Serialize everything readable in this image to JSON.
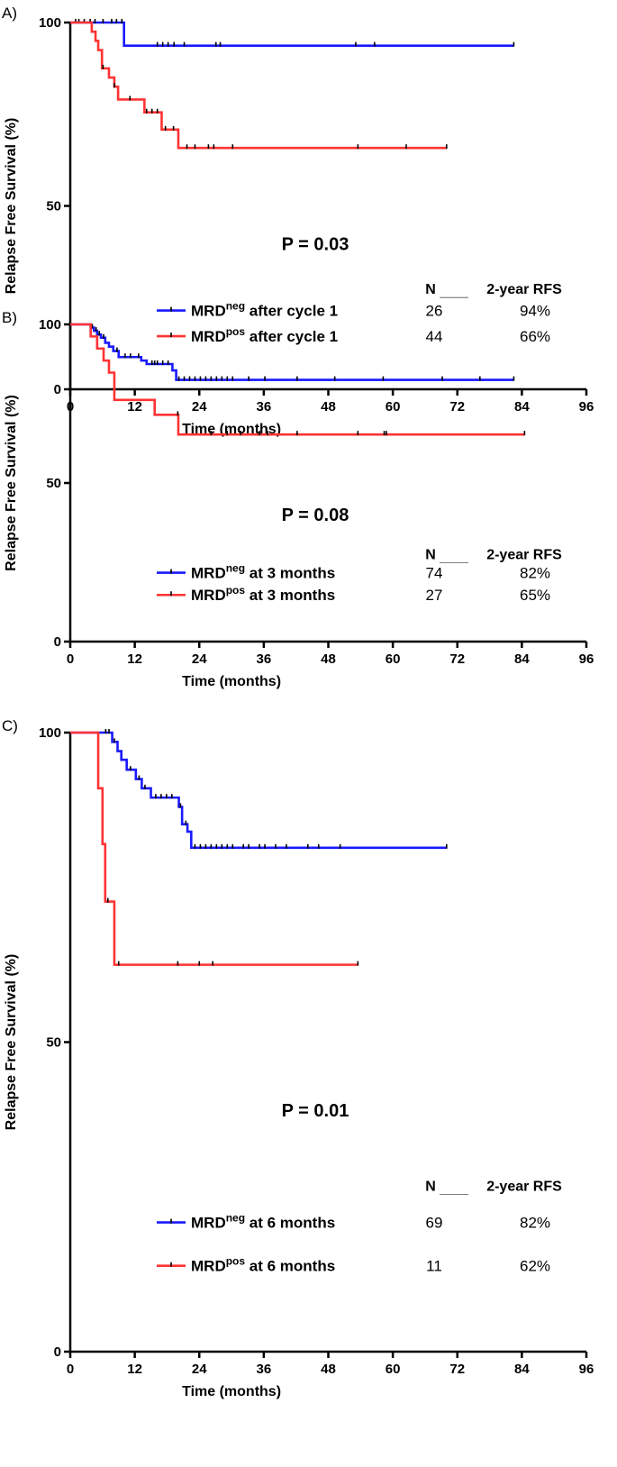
{
  "chart_data": [
    {
      "type": "line",
      "panel_label": "A)",
      "ylabel": "Relapse Free Survival (%)",
      "xlabel": "Time (months)",
      "xlim": [
        0,
        96
      ],
      "ylim": [
        0,
        100
      ],
      "xticks": [
        0,
        12,
        24,
        36,
        48,
        60,
        72,
        84,
        96
      ],
      "yticks": [
        0,
        50,
        100
      ],
      "pvalue": "P = 0.03",
      "table_header": {
        "n": "N",
        "rfs": "2-year RFS"
      },
      "series": [
        {
          "name_base": "MRD",
          "name_sup": "neg",
          "name_rest": "after cycle 1",
          "color": "#1a1aff",
          "n": "26",
          "rfs": "94%",
          "steps": [
            [
              0,
              100
            ],
            [
              10,
              93.7
            ],
            [
              82.5,
              93.7
            ]
          ],
          "censors": [
            1,
            1.6,
            2.6,
            3.7,
            4.6,
            6.1,
            7.7,
            8.6,
            9.6,
            16.2,
            17.2,
            18.2,
            19.3,
            21.2,
            27.1,
            27.9,
            53.1,
            56.6,
            82.5
          ]
        },
        {
          "name_base": "MRD",
          "name_sup": "pos",
          "name_rest": "after cycle 1",
          "color": "#ff3333",
          "n": "44",
          "rfs": "66%",
          "steps": [
            [
              0,
              100
            ],
            [
              4,
              97.5
            ],
            [
              4.7,
              95
            ],
            [
              5.2,
              92.5
            ],
            [
              5.9,
              87.5
            ],
            [
              7.2,
              85
            ],
            [
              8.2,
              82.5
            ],
            [
              8.9,
              79
            ],
            [
              13.8,
              75.5
            ],
            [
              17,
              70.8
            ],
            [
              20.1,
              65.8
            ],
            [
              70,
              65.8
            ]
          ],
          "censors": [
            6.1,
            8.2,
            11.1,
            14.2,
            15.2,
            16.2,
            17.7,
            19.2,
            21.7,
            23.2,
            25.7,
            26.7,
            30.2,
            53.5,
            62.5,
            70
          ]
        }
      ]
    },
    {
      "type": "line",
      "panel_label": "B)",
      "ylabel": "Relapse Free Survival (%)",
      "xlabel": "Time (months)",
      "xlim": [
        0,
        96
      ],
      "ylim": [
        0,
        100
      ],
      "xticks": [
        0,
        12,
        24,
        36,
        48,
        60,
        72,
        84,
        96
      ],
      "yticks": [
        0,
        50,
        100
      ],
      "pvalue": "P = 0.08",
      "table_header": {
        "n": "N",
        "rfs": "2-year RFS"
      },
      "series": [
        {
          "name_base": "MRD",
          "name_sup": "neg",
          "name_rest": "at 3 months",
          "color": "#1a1aff",
          "n": "74",
          "rfs": "82%",
          "steps": [
            [
              0,
              100
            ],
            [
              3.8,
              99
            ],
            [
              4.4,
              98
            ],
            [
              5,
              96.8
            ],
            [
              5.7,
              95.8
            ],
            [
              6.5,
              94.2
            ],
            [
              7.2,
              93
            ],
            [
              8,
              91.6
            ],
            [
              9,
              89.7
            ],
            [
              13.2,
              88.6
            ],
            [
              14.2,
              87.5
            ],
            [
              19,
              85.5
            ],
            [
              19.7,
              82.5
            ],
            [
              82.5,
              82.5
            ]
          ],
          "censors": [
            4.1,
            4.8,
            5.4,
            6.2,
            8.7,
            10.2,
            11.2,
            12.7,
            15.2,
            15.7,
            16.2,
            17.2,
            18.2,
            20.2,
            21.2,
            22.2,
            23.2,
            24.2,
            25.2,
            26.2,
            27.2,
            28.2,
            29.2,
            30.2,
            33.2,
            36.2,
            42.2,
            49.2,
            58.2,
            69.2,
            76.2,
            82.5
          ]
        },
        {
          "name_base": "MRD",
          "name_sup": "pos",
          "name_rest": "at 3 months",
          "color": "#ff3333",
          "n": "27",
          "rfs": "65%",
          "steps": [
            [
              0,
              100
            ],
            [
              3.8,
              96.2
            ],
            [
              5,
              92.4
            ],
            [
              6.2,
              88.6
            ],
            [
              7.2,
              84.8
            ],
            [
              8.2,
              76.2
            ],
            [
              15.7,
              71.5
            ],
            [
              20.1,
              65.3
            ],
            [
              84.5,
              65.3
            ]
          ],
          "censors": [
            20,
            26.2,
            29.2,
            31.7,
            35.2,
            36.7,
            42.2,
            53.5,
            58.4,
            58.8,
            84.5
          ]
        }
      ]
    },
    {
      "type": "line",
      "panel_label": "C)",
      "ylabel": "Relapse Free Survival (%)",
      "xlabel": "Time (months)",
      "xlim": [
        0,
        96
      ],
      "ylim": [
        0,
        100
      ],
      "xticks": [
        0,
        12,
        24,
        36,
        48,
        60,
        72,
        84,
        96
      ],
      "yticks": [
        0,
        50,
        100
      ],
      "pvalue": "P = 0.01",
      "table_header": {
        "n": "N",
        "rfs": "2-year RFS"
      },
      "series": [
        {
          "name_base": "MRD",
          "name_sup": "neg",
          "name_rest": "at 6 months",
          "color": "#1a1aff",
          "n": "69",
          "rfs": "82%",
          "steps": [
            [
              0,
              100
            ],
            [
              7.8,
              98.5
            ],
            [
              8.8,
              97
            ],
            [
              9.5,
              95.6
            ],
            [
              10.5,
              94
            ],
            [
              12.2,
              92.5
            ],
            [
              13.3,
              91
            ],
            [
              15,
              89.5
            ],
            [
              20.2,
              88
            ],
            [
              20.8,
              85.2
            ],
            [
              21.8,
              84
            ],
            [
              22.5,
              81.4
            ],
            [
              70,
              81.4
            ]
          ],
          "censors": [
            6.6,
            7.2,
            8.2,
            11.2,
            12.8,
            13.9,
            15.9,
            16.9,
            17.9,
            18.9,
            20.5,
            21.5,
            23.2,
            24.2,
            25.2,
            26.2,
            27.2,
            28.2,
            29.2,
            30.2,
            32.2,
            33.2,
            35.2,
            36.2,
            38.2,
            40.2,
            44.2,
            46.2,
            50.2,
            70
          ]
        },
        {
          "name_base": "MRD",
          "name_sup": "pos",
          "name_rest": "at 6 months",
          "color": "#ff3333",
          "n": "11",
          "rfs": "62%",
          "steps": [
            [
              0,
              100
            ],
            [
              5.2,
              91
            ],
            [
              6,
              82
            ],
            [
              6.5,
              72.7
            ],
            [
              8.2,
              62.5
            ],
            [
              53.5,
              62.5
            ]
          ],
          "censors": [
            7,
            9,
            20,
            24,
            26.5,
            53.5
          ]
        }
      ]
    }
  ]
}
